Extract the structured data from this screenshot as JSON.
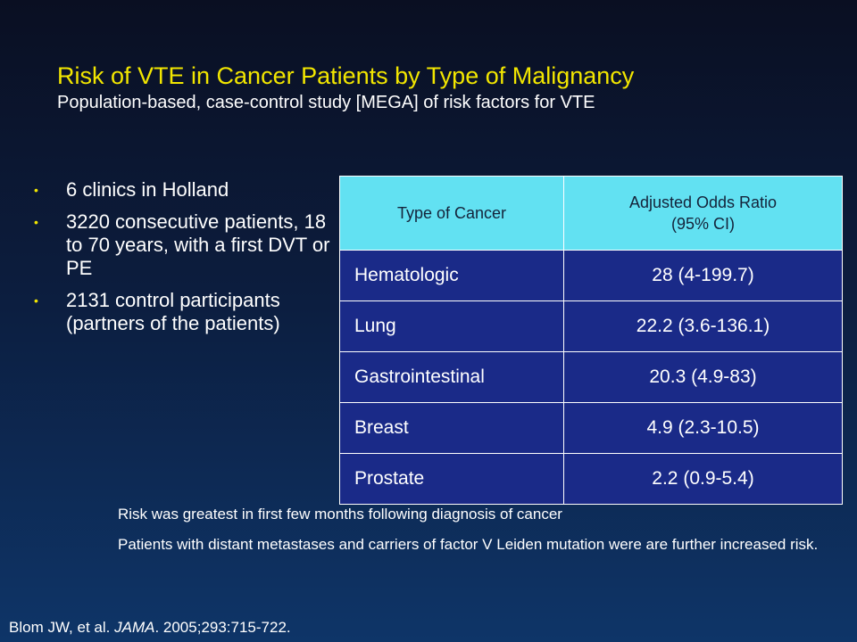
{
  "slide": {
    "title": "Risk of VTE in Cancer Patients by Type of Malignancy",
    "subtitle": "Population-based, case-control study [MEGA] of risk factors for VTE"
  },
  "bullets": [
    "6 clinics in Holland",
    "3220 consecutive patients, 18 to 70 years, with a first DVT or PE",
    "2131 control participants (partners of the patients)"
  ],
  "table": {
    "headers": [
      "Type of Cancer",
      "Adjusted Odds Ratio",
      "(95% CI)"
    ],
    "rows": [
      {
        "type": "Hematologic",
        "or": "28 (4-199.7)"
      },
      {
        "type": "Lung",
        "or": "22.2 (3.6-136.1)"
      },
      {
        "type": "Gastrointestinal",
        "or": "20.3 (4.9-83)"
      },
      {
        "type": "Breast",
        "or": "4.9 (2.3-10.5)"
      },
      {
        "type": "Prostate",
        "or": "2.2 (0.9-5.4)"
      }
    ]
  },
  "notes": [
    "Risk was greatest in first few months following diagnosis of cancer",
    "Patients with distant metastases and  carriers of factor V Leiden mutation were are further increased risk."
  ],
  "citation": {
    "authors": "Blom JW, et al.",
    "journal": "JAMA",
    "details": ". 2005;293:715-722."
  },
  "colors": {
    "title": "#f2e600",
    "table_header_bg": "#62e1f2",
    "table_body_bg": "#1a2a88"
  }
}
